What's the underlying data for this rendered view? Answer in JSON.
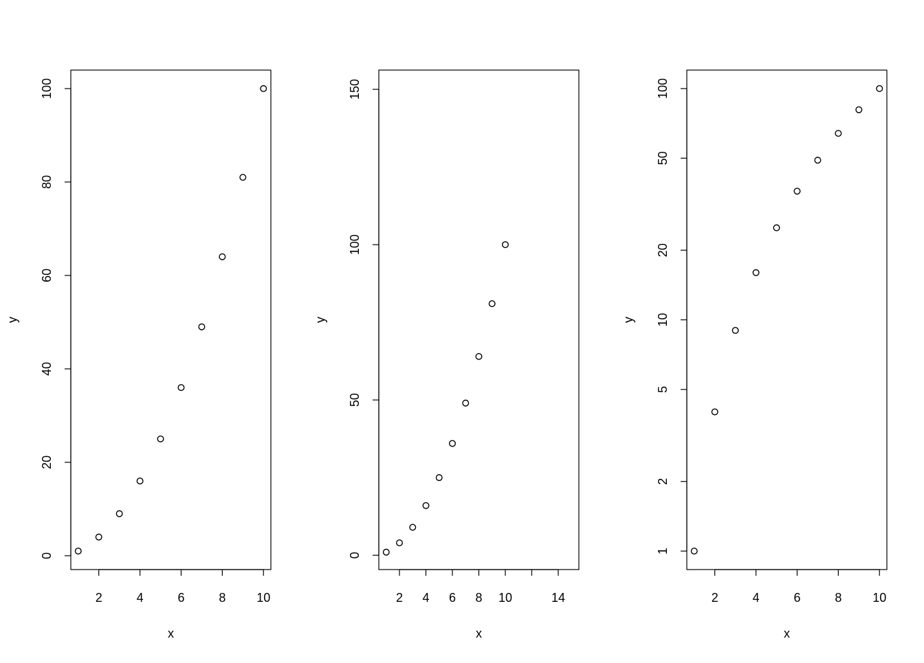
{
  "chart_data": [
    {
      "type": "scatter",
      "x_label": "x",
      "y_label": "y",
      "x": [
        1,
        2,
        3,
        4,
        5,
        6,
        7,
        8,
        9,
        10
      ],
      "values": [
        1,
        4,
        9,
        16,
        25,
        36,
        49,
        64,
        81,
        100
      ],
      "xlim": [
        0.64,
        10.36
      ],
      "ylim": [
        -2.96,
        103.96
      ],
      "xticks": [
        2,
        4,
        6,
        8,
        10
      ],
      "yticks": [
        0,
        20,
        40,
        60,
        80,
        100
      ],
      "log_y": false,
      "color": "#000000"
    },
    {
      "type": "scatter",
      "x_label": "x",
      "y_label": "y",
      "x": [
        1,
        2,
        3,
        4,
        5,
        6,
        7,
        8,
        9,
        10
      ],
      "values": [
        1,
        4,
        9,
        16,
        25,
        36,
        49,
        64,
        81,
        100
      ],
      "xlim": [
        0.44,
        15.56
      ],
      "ylim": [
        -4.6,
        156.2
      ],
      "xticks": [
        2,
        4,
        6,
        8,
        10,
        {
          "value": 12,
          "label": null
        },
        14
      ],
      "yticks": [
        0,
        50,
        100,
        150
      ],
      "log_y": false,
      "color": "#000000"
    },
    {
      "type": "scatter",
      "x_label": "x",
      "y_label": "y",
      "x": [
        1,
        2,
        3,
        4,
        5,
        6,
        7,
        8,
        9,
        10
      ],
      "values": [
        1,
        4,
        9,
        16,
        25,
        36,
        49,
        64,
        81,
        100
      ],
      "xlim": [
        0.64,
        10.36
      ],
      "ylim": [
        0.832,
        120.2
      ],
      "xticks": [
        2,
        4,
        6,
        8,
        10
      ],
      "yticks": [
        1,
        2,
        5,
        10,
        20,
        50,
        100
      ],
      "log_y": true,
      "color": "#000000"
    }
  ]
}
